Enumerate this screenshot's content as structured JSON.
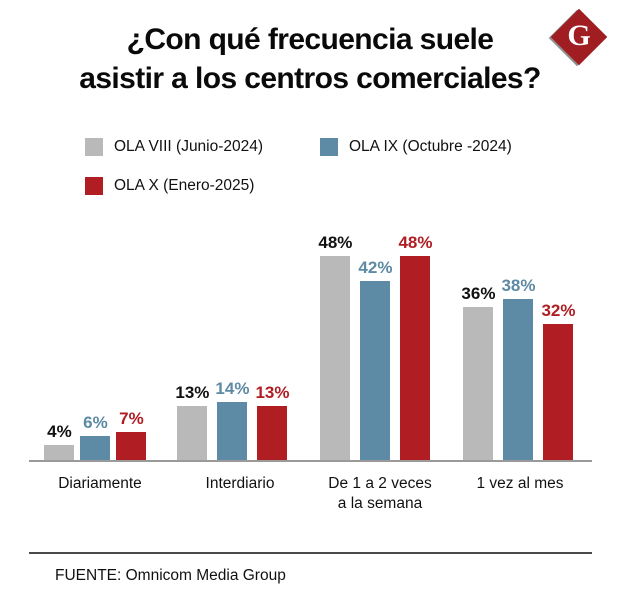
{
  "header": {
    "title_line1": "¿Con qué frecuencia suele",
    "title_line2": "asistir a los centros comerciales?",
    "logo_letter": "G"
  },
  "legend": {
    "items": [
      {
        "label": "OLA VIII (Junio-2024)",
        "color": "#b9b9b9"
      },
      {
        "label": "OLA IX (Octubre -2024)",
        "color": "#5d8aa4"
      },
      {
        "label": "OLA X (Enero-2025)",
        "color": "#b01e23"
      }
    ]
  },
  "chart_data": {
    "type": "bar",
    "title": "¿Con qué frecuencia suele asistir a los centros comerciales?",
    "categories": [
      "Diariamente",
      "Interdiario",
      "De 1 a 2 veces a la semana",
      "1 vez al mes"
    ],
    "series": [
      {
        "name": "OLA VIII (Junio-2024)",
        "color": "#b9b9b9",
        "label_color": "#111111",
        "values": [
          4,
          13,
          48,
          36
        ]
      },
      {
        "name": "OLA IX (Octubre -2024)",
        "color": "#5d8aa4",
        "label_color": "#5d8aa4",
        "values": [
          6,
          14,
          42,
          38
        ]
      },
      {
        "name": "OLA X (Enero-2025)",
        "color": "#b01e23",
        "label_color": "#b01e23",
        "values": [
          7,
          13,
          48,
          32
        ]
      }
    ],
    "value_suffix": "%",
    "ylim": [
      0,
      50
    ],
    "grid": false,
    "legend_position": "top-left"
  },
  "footer": {
    "source": "FUENTE: Omnicom Media Group"
  },
  "colors": {
    "gray": "#b9b9b9",
    "blue": "#5d8aa4",
    "red": "#b01e23",
    "axis": "#9a9a9a",
    "text": "#111111"
  }
}
